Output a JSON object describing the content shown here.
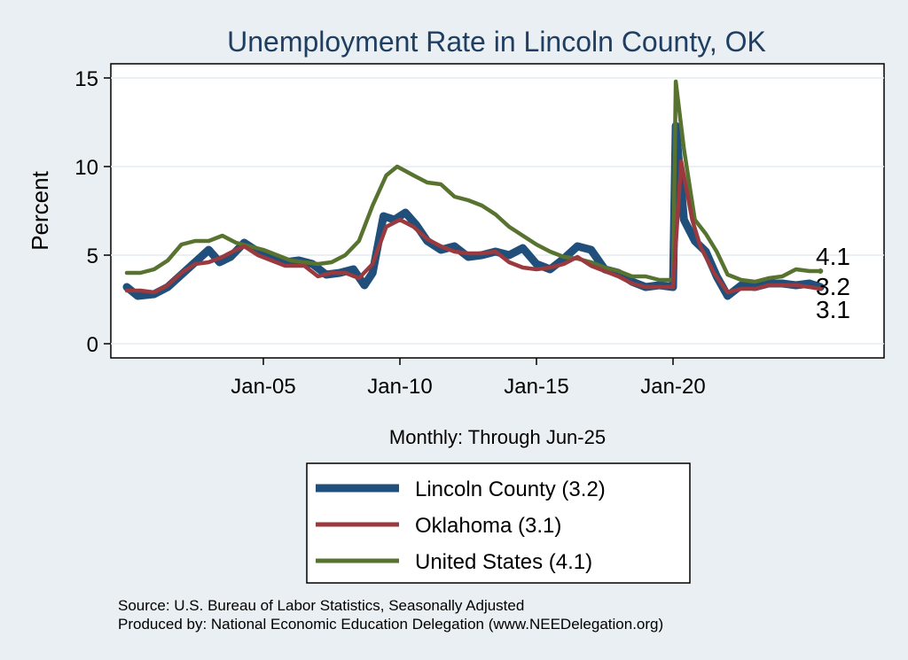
{
  "chart_data": {
    "type": "line",
    "title": "Unemployment Rate in Lincoln  County, OK",
    "ylabel": "Percent",
    "xlabel": "Monthly: Through Jun-25",
    "ylim": [
      0,
      16
    ],
    "yticks": [
      "0",
      "5",
      "10",
      "15"
    ],
    "xticks": [
      {
        "label": "Jan-05",
        "year": 2005
      },
      {
        "label": "Jan-10",
        "year": 2010
      },
      {
        "label": "Jan-15",
        "year": 2015
      },
      {
        "label": "Jan-20",
        "year": 2020
      }
    ],
    "xrange": [
      1999.5,
      2027.4
    ],
    "grid": true,
    "legend_position": "bottom",
    "series": [
      {
        "name": "Lincoln  County (3.2)",
        "color": "#1f4f7a",
        "end_label": "3.2",
        "points": [
          [
            2000.0,
            3.2
          ],
          [
            2000.4,
            2.7
          ],
          [
            2001.0,
            2.8
          ],
          [
            2001.5,
            3.2
          ],
          [
            2002.0,
            3.9
          ],
          [
            2002.5,
            4.6
          ],
          [
            2003.0,
            5.3
          ],
          [
            2003.4,
            4.6
          ],
          [
            2003.8,
            4.9
          ],
          [
            2004.3,
            5.7
          ],
          [
            2004.8,
            5.2
          ],
          [
            2005.3,
            4.9
          ],
          [
            2005.8,
            4.6
          ],
          [
            2006.3,
            4.7
          ],
          [
            2006.8,
            4.5
          ],
          [
            2007.3,
            3.9
          ],
          [
            2007.8,
            4.0
          ],
          [
            2008.3,
            4.2
          ],
          [
            2008.7,
            3.3
          ],
          [
            2009.0,
            4.0
          ],
          [
            2009.4,
            7.2
          ],
          [
            2009.8,
            7.0
          ],
          [
            2010.2,
            7.4
          ],
          [
            2010.6,
            6.7
          ],
          [
            2011.0,
            5.8
          ],
          [
            2011.5,
            5.3
          ],
          [
            2012.0,
            5.5
          ],
          [
            2012.5,
            4.9
          ],
          [
            2013.0,
            5.0
          ],
          [
            2013.5,
            5.2
          ],
          [
            2014.0,
            5.0
          ],
          [
            2014.5,
            5.4
          ],
          [
            2015.0,
            4.5
          ],
          [
            2015.5,
            4.2
          ],
          [
            2016.0,
            4.8
          ],
          [
            2016.5,
            5.5
          ],
          [
            2017.0,
            5.3
          ],
          [
            2017.5,
            4.2
          ],
          [
            2018.0,
            4.0
          ],
          [
            2018.5,
            3.5
          ],
          [
            2019.0,
            3.2
          ],
          [
            2019.5,
            3.3
          ],
          [
            2020.0,
            3.2
          ],
          [
            2020.1,
            12.3
          ],
          [
            2020.4,
            7.0
          ],
          [
            2020.8,
            5.8
          ],
          [
            2021.2,
            5.2
          ],
          [
            2021.6,
            3.8
          ],
          [
            2022.0,
            2.7
          ],
          [
            2022.5,
            3.3
          ],
          [
            2023.0,
            3.2
          ],
          [
            2023.5,
            3.4
          ],
          [
            2024.0,
            3.4
          ],
          [
            2024.5,
            3.3
          ],
          [
            2025.0,
            3.4
          ],
          [
            2025.4,
            3.2
          ]
        ]
      },
      {
        "name": "Oklahoma (3.1)",
        "color": "#9b3a3e",
        "end_label": "3.1",
        "points": [
          [
            2000.0,
            3.0
          ],
          [
            2000.5,
            3.0
          ],
          [
            2001.0,
            2.9
          ],
          [
            2001.5,
            3.3
          ],
          [
            2002.0,
            4.0
          ],
          [
            2002.5,
            4.5
          ],
          [
            2003.0,
            4.6
          ],
          [
            2003.5,
            4.9
          ],
          [
            2004.0,
            5.3
          ],
          [
            2004.3,
            5.5
          ],
          [
            2004.8,
            5.0
          ],
          [
            2005.3,
            4.7
          ],
          [
            2005.8,
            4.4
          ],
          [
            2006.5,
            4.4
          ],
          [
            2007.0,
            3.8
          ],
          [
            2007.5,
            4.0
          ],
          [
            2008.0,
            4.0
          ],
          [
            2008.5,
            3.7
          ],
          [
            2009.0,
            4.5
          ],
          [
            2009.5,
            6.6
          ],
          [
            2010.0,
            7.0
          ],
          [
            2010.5,
            6.6
          ],
          [
            2011.0,
            5.9
          ],
          [
            2011.5,
            5.5
          ],
          [
            2012.0,
            5.2
          ],
          [
            2012.5,
            5.1
          ],
          [
            2013.0,
            5.1
          ],
          [
            2013.5,
            5.2
          ],
          [
            2014.0,
            4.6
          ],
          [
            2014.5,
            4.3
          ],
          [
            2015.0,
            4.2
          ],
          [
            2015.5,
            4.3
          ],
          [
            2016.0,
            4.5
          ],
          [
            2016.5,
            4.9
          ],
          [
            2017.0,
            4.4
          ],
          [
            2017.5,
            4.1
          ],
          [
            2018.0,
            3.8
          ],
          [
            2018.5,
            3.4
          ],
          [
            2019.0,
            3.2
          ],
          [
            2019.5,
            3.2
          ],
          [
            2020.0,
            3.2
          ],
          [
            2020.3,
            10.3
          ],
          [
            2020.7,
            7.0
          ],
          [
            2021.0,
            5.5
          ],
          [
            2021.5,
            4.0
          ],
          [
            2022.0,
            2.9
          ],
          [
            2022.5,
            3.1
          ],
          [
            2023.0,
            3.1
          ],
          [
            2023.5,
            3.3
          ],
          [
            2024.0,
            3.3
          ],
          [
            2024.5,
            3.3
          ],
          [
            2025.0,
            3.2
          ],
          [
            2025.4,
            3.1
          ]
        ]
      },
      {
        "name": "United States (4.1)",
        "color": "#58732f",
        "end_label": "4.1",
        "points": [
          [
            2000.0,
            4.0
          ],
          [
            2000.5,
            4.0
          ],
          [
            2001.0,
            4.2
          ],
          [
            2001.5,
            4.7
          ],
          [
            2002.0,
            5.6
          ],
          [
            2002.5,
            5.8
          ],
          [
            2003.0,
            5.8
          ],
          [
            2003.5,
            6.1
          ],
          [
            2004.0,
            5.7
          ],
          [
            2004.5,
            5.5
          ],
          [
            2005.0,
            5.3
          ],
          [
            2005.5,
            5.0
          ],
          [
            2006.0,
            4.7
          ],
          [
            2006.5,
            4.6
          ],
          [
            2007.0,
            4.5
          ],
          [
            2007.5,
            4.6
          ],
          [
            2008.0,
            5.0
          ],
          [
            2008.5,
            5.8
          ],
          [
            2009.0,
            7.8
          ],
          [
            2009.5,
            9.5
          ],
          [
            2009.9,
            10.0
          ],
          [
            2010.5,
            9.5
          ],
          [
            2011.0,
            9.1
          ],
          [
            2011.5,
            9.0
          ],
          [
            2012.0,
            8.3
          ],
          [
            2012.5,
            8.1
          ],
          [
            2013.0,
            7.8
          ],
          [
            2013.5,
            7.3
          ],
          [
            2014.0,
            6.6
          ],
          [
            2014.5,
            6.1
          ],
          [
            2015.0,
            5.6
          ],
          [
            2015.5,
            5.2
          ],
          [
            2016.0,
            4.9
          ],
          [
            2016.5,
            4.8
          ],
          [
            2017.0,
            4.6
          ],
          [
            2017.5,
            4.3
          ],
          [
            2018.0,
            4.1
          ],
          [
            2018.5,
            3.8
          ],
          [
            2019.0,
            3.8
          ],
          [
            2019.5,
            3.6
          ],
          [
            2020.0,
            3.6
          ],
          [
            2020.1,
            14.8
          ],
          [
            2020.4,
            11.0
          ],
          [
            2020.8,
            7.0
          ],
          [
            2021.2,
            6.2
          ],
          [
            2021.6,
            5.2
          ],
          [
            2022.0,
            3.9
          ],
          [
            2022.5,
            3.6
          ],
          [
            2023.0,
            3.5
          ],
          [
            2023.5,
            3.7
          ],
          [
            2024.0,
            3.8
          ],
          [
            2024.5,
            4.2
          ],
          [
            2025.0,
            4.1
          ],
          [
            2025.4,
            4.1
          ]
        ]
      }
    ],
    "legend": [
      {
        "label": "Lincoln  County (3.2)",
        "color": "#1f4f7a"
      },
      {
        "label": "Oklahoma (3.1)",
        "color": "#9b3a3e"
      },
      {
        "label": "United States (4.1)",
        "color": "#58732f"
      }
    ]
  },
  "footer": {
    "source": "Source: U.S. Bureau of Labor Statistics, Seasonally Adjusted",
    "produced_by": "Produced by: National Economic Education Delegation (www.NEEDelegation.org)"
  }
}
